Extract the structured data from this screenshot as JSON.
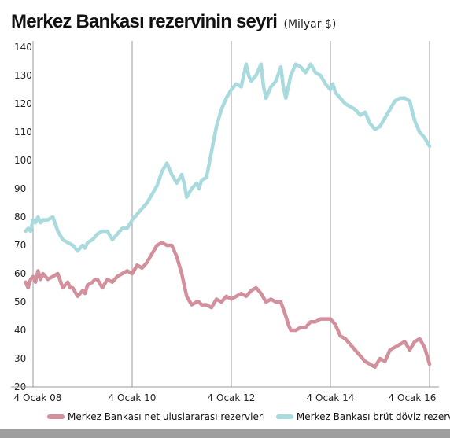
{
  "title": "Merkez Bankası rezervinin seyri",
  "unit": "(Milyar $)",
  "chart_data": {
    "type": "line",
    "title": "Merkez Bankası rezervinin seyri",
    "subtitle": "(Milyar $)",
    "xlabel": "",
    "ylabel": "",
    "ylim": [
      20,
      140
    ],
    "yticks": [
      "140",
      "130",
      "120",
      "110",
      "100",
      "90",
      "80",
      "70",
      "60",
      "50",
      "40",
      "30",
      "20"
    ],
    "xlim": [
      2008.0,
      2016.0
    ],
    "xticks": [
      {
        "x": 2008.0,
        "label": "4 Ocak 08"
      },
      {
        "x": 2010.0,
        "label": "4 Ocak 10"
      },
      {
        "x": 2012.0,
        "label": "4 Ocak 12"
      },
      {
        "x": 2014.0,
        "label": "4 Ocak 14"
      },
      {
        "x": 2016.0,
        "label": "4 Ocak 16"
      }
    ],
    "grid": "vertical",
    "legend": "bottom",
    "series": [
      {
        "name": "Merkez Bankası net uluslararası rezervleri",
        "color": "#d2909c",
        "x": [
          2007.85,
          2007.9,
          2007.95,
          2008.0,
          2008.05,
          2008.1,
          2008.15,
          2008.2,
          2008.3,
          2008.4,
          2008.5,
          2008.6,
          2008.7,
          2008.75,
          2008.8,
          2008.9,
          2009.0,
          2009.05,
          2009.1,
          2009.2,
          2009.25,
          2009.3,
          2009.4,
          2009.5,
          2009.6,
          2009.7,
          2009.8,
          2009.9,
          2010.0,
          2010.1,
          2010.2,
          2010.3,
          2010.4,
          2010.5,
          2010.6,
          2010.7,
          2010.8,
          2010.9,
          2011.0,
          2011.05,
          2011.1,
          2011.2,
          2011.3,
          2011.35,
          2011.4,
          2011.5,
          2011.6,
          2011.7,
          2011.8,
          2011.9,
          2012.0,
          2012.1,
          2012.2,
          2012.3,
          2012.4,
          2012.5,
          2012.6,
          2012.7,
          2012.8,
          2012.9,
          2013.0,
          2013.1,
          2013.15,
          2013.2,
          2013.3,
          2013.4,
          2013.5,
          2013.6,
          2013.7,
          2013.8,
          2013.9,
          2014.0,
          2014.05,
          2014.1,
          2014.2,
          2014.3,
          2014.4,
          2014.5,
          2014.6,
          2014.7,
          2014.8,
          2014.9,
          2015.0,
          2015.1,
          2015.2,
          2015.3,
          2015.4,
          2015.5,
          2015.6,
          2015.7,
          2015.8,
          2015.9,
          2016.0
        ],
        "values": [
          57,
          55,
          58,
          59,
          57,
          61,
          58,
          60,
          58,
          59,
          60,
          55,
          57,
          55,
          55,
          52,
          54,
          53,
          56,
          57,
          58,
          58,
          55,
          58,
          57,
          59,
          60,
          61,
          60,
          63,
          62,
          64,
          67,
          70,
          71,
          70,
          70,
          66,
          60,
          56,
          52,
          49,
          50,
          50,
          49,
          49,
          48,
          51,
          50,
          52,
          51,
          52,
          53,
          52,
          54,
          55,
          53,
          50,
          51,
          50,
          50,
          45,
          42,
          40,
          40,
          41,
          41,
          43,
          43,
          44,
          44,
          44,
          43,
          42,
          38,
          37,
          35,
          33,
          31,
          29,
          28,
          27,
          30,
          29,
          33,
          34,
          35,
          36,
          33,
          36,
          37,
          34,
          28
        ]
      },
      {
        "name": "Merkez Bankası brüt döviz rezervi",
        "color": "#a8dade",
        "x": [
          2007.85,
          2007.9,
          2007.95,
          2008.0,
          2008.05,
          2008.1,
          2008.15,
          2008.2,
          2008.3,
          2008.4,
          2008.5,
          2008.6,
          2008.7,
          2008.8,
          2008.9,
          2009.0,
          2009.05,
          2009.1,
          2009.2,
          2009.3,
          2009.4,
          2009.5,
          2009.6,
          2009.7,
          2009.8,
          2009.9,
          2010.0,
          2010.1,
          2010.2,
          2010.3,
          2010.4,
          2010.5,
          2010.6,
          2010.7,
          2010.8,
          2010.9,
          2011.0,
          2011.05,
          2011.1,
          2011.2,
          2011.3,
          2011.35,
          2011.4,
          2011.5,
          2011.6,
          2011.7,
          2011.8,
          2011.9,
          2012.0,
          2012.1,
          2012.2,
          2012.3,
          2012.35,
          2012.4,
          2012.5,
          2012.6,
          2012.65,
          2012.7,
          2012.8,
          2012.9,
          2013.0,
          2013.05,
          2013.1,
          2013.2,
          2013.3,
          2013.4,
          2013.5,
          2013.6,
          2013.7,
          2013.8,
          2013.9,
          2014.0,
          2014.05,
          2014.1,
          2014.2,
          2014.3,
          2014.4,
          2014.5,
          2014.6,
          2014.7,
          2014.8,
          2014.9,
          2015.0,
          2015.1,
          2015.2,
          2015.3,
          2015.4,
          2015.5,
          2015.6,
          2015.7,
          2015.8,
          2015.9,
          2016.0
        ],
        "values": [
          75,
          76,
          75,
          79,
          78,
          80,
          78,
          79,
          79,
          80,
          75,
          72,
          71,
          70,
          68,
          70,
          69,
          71,
          72,
          74,
          75,
          75,
          72,
          74,
          76,
          76,
          79,
          81,
          83,
          85,
          88,
          91,
          96,
          99,
          95,
          92,
          95,
          92,
          87,
          90,
          92,
          90,
          93,
          94,
          103,
          112,
          118,
          122,
          125,
          127,
          126,
          134,
          130,
          128,
          130,
          134,
          126,
          122,
          126,
          128,
          133,
          126,
          122,
          130,
          134,
          133,
          131,
          134,
          131,
          130,
          127,
          125,
          127,
          124,
          122,
          120,
          119,
          118,
          116,
          117,
          113,
          111,
          112,
          115,
          118,
          121,
          122,
          122,
          121,
          114,
          110,
          108,
          105
        ]
      }
    ]
  },
  "legend": [
    {
      "label": "Merkez Bankası net uluslararası rezervleri",
      "color": "#d2909c"
    },
    {
      "label": "Merkez Bankası brüt döviz rezervi",
      "color": "#a8dade"
    }
  ]
}
